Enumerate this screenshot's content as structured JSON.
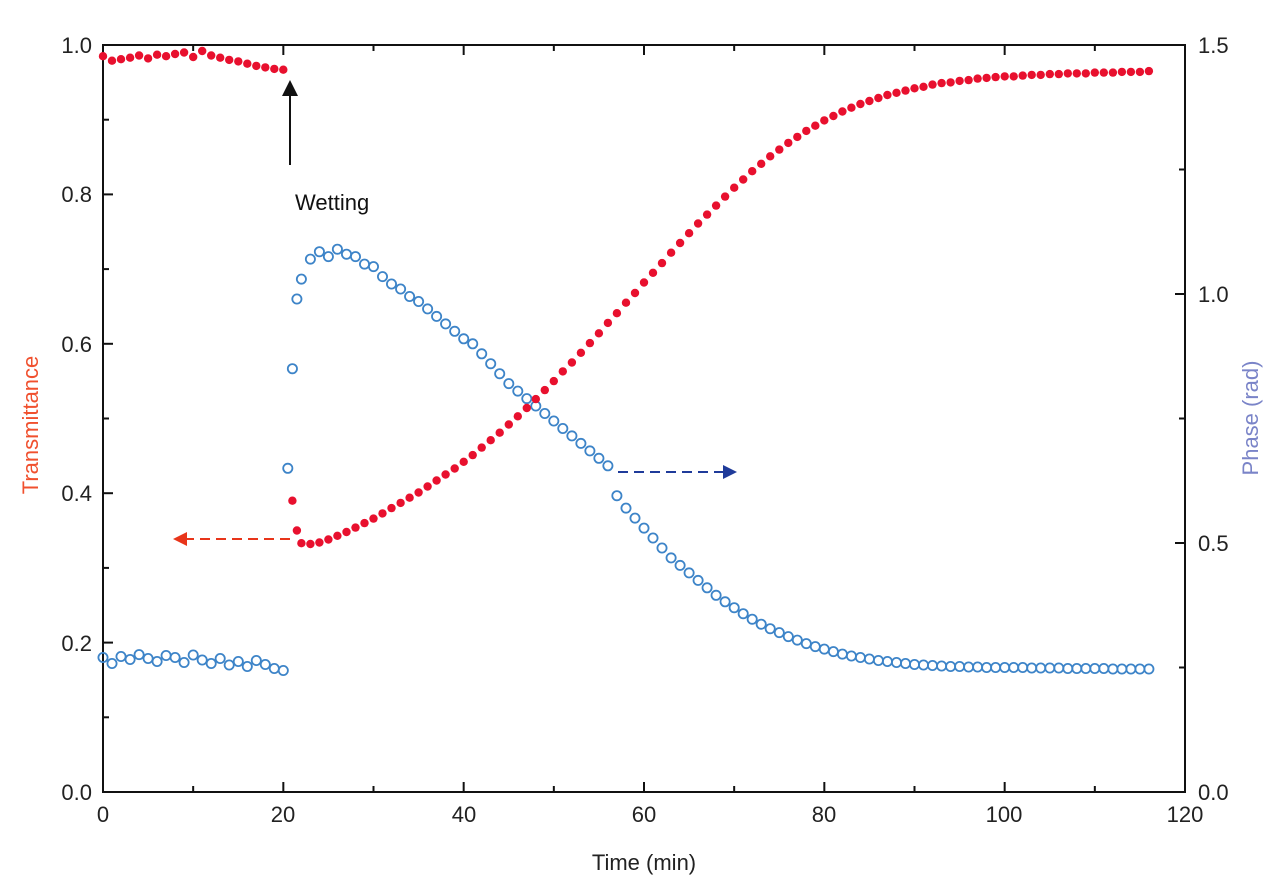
{
  "chart_data": {
    "type": "scatter",
    "title": "",
    "xlabel": "Time (min)",
    "ylabel_left": "Transmittance",
    "ylabel_right": "Phase (rad)",
    "xlim": [
      0,
      120
    ],
    "ylim_left": [
      0,
      1.0
    ],
    "ylim_right": [
      0,
      1.5
    ],
    "xticks": [
      "0",
      "20",
      "40",
      "60",
      "80",
      "100",
      "120"
    ],
    "yticks_left": [
      "0.0",
      "0.2",
      "0.4",
      "0.6",
      "0.8",
      "1.0"
    ],
    "yticks_right": [
      "0.0",
      "0.5",
      "1.0",
      "1.5"
    ],
    "grid": false,
    "colors": {
      "transmittance": "#e8102e",
      "phase": "#3d84c8",
      "left_axis_title": "#f0502e",
      "right_axis_title": "#7a84c8"
    },
    "annotations": [
      {
        "text": "Wetting",
        "x": 20,
        "arrow_points_to": "wetting event"
      }
    ],
    "series": [
      {
        "name": "Transmittance",
        "axis": "left",
        "marker": "filled-circle",
        "points": [
          [
            0,
            0.985
          ],
          [
            1,
            0.979
          ],
          [
            2,
            0.981
          ],
          [
            3,
            0.983
          ],
          [
            4,
            0.986
          ],
          [
            5,
            0.982
          ],
          [
            6,
            0.987
          ],
          [
            7,
            0.985
          ],
          [
            8,
            0.988
          ],
          [
            9,
            0.99
          ],
          [
            10,
            0.984
          ],
          [
            11,
            0.992
          ],
          [
            12,
            0.986
          ],
          [
            13,
            0.983
          ],
          [
            14,
            0.98
          ],
          [
            15,
            0.978
          ],
          [
            16,
            0.975
          ],
          [
            17,
            0.972
          ],
          [
            18,
            0.97
          ],
          [
            19,
            0.968
          ],
          [
            20,
            0.967
          ],
          [
            21,
            0.39
          ],
          [
            21.5,
            0.35
          ],
          [
            22,
            0.333
          ],
          [
            23,
            0.332
          ],
          [
            24,
            0.334
          ],
          [
            25,
            0.338
          ],
          [
            26,
            0.343
          ],
          [
            27,
            0.348
          ],
          [
            28,
            0.354
          ],
          [
            29,
            0.36
          ],
          [
            30,
            0.366
          ],
          [
            31,
            0.373
          ],
          [
            32,
            0.38
          ],
          [
            33,
            0.387
          ],
          [
            34,
            0.394
          ],
          [
            35,
            0.401
          ],
          [
            36,
            0.409
          ],
          [
            37,
            0.417
          ],
          [
            38,
            0.425
          ],
          [
            39,
            0.433
          ],
          [
            40,
            0.442
          ],
          [
            41,
            0.451
          ],
          [
            42,
            0.461
          ],
          [
            43,
            0.471
          ],
          [
            44,
            0.481
          ],
          [
            45,
            0.492
          ],
          [
            46,
            0.503
          ],
          [
            47,
            0.514
          ],
          [
            48,
            0.526
          ],
          [
            49,
            0.538
          ],
          [
            50,
            0.55
          ],
          [
            51,
            0.563
          ],
          [
            52,
            0.575
          ],
          [
            53,
            0.588
          ],
          [
            54,
            0.601
          ],
          [
            55,
            0.614
          ],
          [
            56,
            0.628
          ],
          [
            57,
            0.641
          ],
          [
            58,
            0.655
          ],
          [
            59,
            0.668
          ],
          [
            60,
            0.682
          ],
          [
            61,
            0.695
          ],
          [
            62,
            0.708
          ],
          [
            63,
            0.722
          ],
          [
            64,
            0.735
          ],
          [
            65,
            0.748
          ],
          [
            66,
            0.761
          ],
          [
            67,
            0.773
          ],
          [
            68,
            0.785
          ],
          [
            69,
            0.797
          ],
          [
            70,
            0.809
          ],
          [
            71,
            0.82
          ],
          [
            72,
            0.831
          ],
          [
            73,
            0.841
          ],
          [
            74,
            0.851
          ],
          [
            75,
            0.86
          ],
          [
            76,
            0.869
          ],
          [
            77,
            0.877
          ],
          [
            78,
            0.885
          ],
          [
            79,
            0.892
          ],
          [
            80,
            0.899
          ],
          [
            81,
            0.905
          ],
          [
            82,
            0.911
          ],
          [
            83,
            0.916
          ],
          [
            84,
            0.921
          ],
          [
            85,
            0.925
          ],
          [
            86,
            0.929
          ],
          [
            87,
            0.933
          ],
          [
            88,
            0.936
          ],
          [
            89,
            0.939
          ],
          [
            90,
            0.942
          ],
          [
            91,
            0.944
          ],
          [
            92,
            0.947
          ],
          [
            93,
            0.949
          ],
          [
            94,
            0.95
          ],
          [
            95,
            0.952
          ],
          [
            96,
            0.953
          ],
          [
            97,
            0.955
          ],
          [
            98,
            0.956
          ],
          [
            99,
            0.957
          ],
          [
            100,
            0.958
          ],
          [
            101,
            0.958
          ],
          [
            102,
            0.959
          ],
          [
            103,
            0.96
          ],
          [
            104,
            0.96
          ],
          [
            105,
            0.961
          ],
          [
            106,
            0.961
          ],
          [
            107,
            0.962
          ],
          [
            108,
            0.962
          ],
          [
            109,
            0.962
          ],
          [
            110,
            0.963
          ],
          [
            111,
            0.963
          ],
          [
            112,
            0.963
          ],
          [
            113,
            0.964
          ],
          [
            114,
            0.964
          ],
          [
            115,
            0.964
          ],
          [
            116,
            0.965
          ]
        ]
      },
      {
        "name": "Phase",
        "axis": "right",
        "marker": "open-circle",
        "points": [
          [
            0,
            0.27
          ],
          [
            1,
            0.258
          ],
          [
            2,
            0.272
          ],
          [
            3,
            0.266
          ],
          [
            4,
            0.276
          ],
          [
            5,
            0.268
          ],
          [
            6,
            0.262
          ],
          [
            7,
            0.274
          ],
          [
            8,
            0.27
          ],
          [
            9,
            0.26
          ],
          [
            10,
            0.275
          ],
          [
            11,
            0.265
          ],
          [
            12,
            0.258
          ],
          [
            13,
            0.268
          ],
          [
            14,
            0.255
          ],
          [
            15,
            0.262
          ],
          [
            16,
            0.252
          ],
          [
            17,
            0.264
          ],
          [
            18,
            0.256
          ],
          [
            19,
            0.248
          ],
          [
            20,
            0.244
          ],
          [
            20.5,
            0.65
          ],
          [
            21,
            0.85
          ],
          [
            21.5,
            0.99
          ],
          [
            22,
            1.03
          ],
          [
            23,
            1.07
          ],
          [
            24,
            1.085
          ],
          [
            25,
            1.075
          ],
          [
            26,
            1.09
          ],
          [
            27,
            1.08
          ],
          [
            28,
            1.075
          ],
          [
            29,
            1.06
          ],
          [
            30,
            1.055
          ],
          [
            31,
            1.035
          ],
          [
            32,
            1.02
          ],
          [
            33,
            1.01
          ],
          [
            34,
            0.995
          ],
          [
            35,
            0.985
          ],
          [
            36,
            0.97
          ],
          [
            37,
            0.955
          ],
          [
            38,
            0.94
          ],
          [
            39,
            0.925
          ],
          [
            40,
            0.91
          ],
          [
            41,
            0.9
          ],
          [
            42,
            0.88
          ],
          [
            43,
            0.86
          ],
          [
            44,
            0.84
          ],
          [
            45,
            0.82
          ],
          [
            46,
            0.805
          ],
          [
            47,
            0.79
          ],
          [
            48,
            0.775
          ],
          [
            49,
            0.76
          ],
          [
            50,
            0.745
          ],
          [
            51,
            0.73
          ],
          [
            52,
            0.715
          ],
          [
            53,
            0.7
          ],
          [
            54,
            0.685
          ],
          [
            55,
            0.67
          ],
          [
            56,
            0.655
          ],
          [
            57,
            0.595
          ],
          [
            58,
            0.57
          ],
          [
            59,
            0.55
          ],
          [
            60,
            0.53
          ],
          [
            61,
            0.51
          ],
          [
            62,
            0.49
          ],
          [
            63,
            0.47
          ],
          [
            64,
            0.455
          ],
          [
            65,
            0.44
          ],
          [
            66,
            0.425
          ],
          [
            67,
            0.41
          ],
          [
            68,
            0.395
          ],
          [
            69,
            0.382
          ],
          [
            70,
            0.37
          ],
          [
            71,
            0.358
          ],
          [
            72,
            0.347
          ],
          [
            73,
            0.337
          ],
          [
            74,
            0.328
          ],
          [
            75,
            0.32
          ],
          [
            76,
            0.312
          ],
          [
            77,
            0.305
          ],
          [
            78,
            0.298
          ],
          [
            79,
            0.292
          ],
          [
            80,
            0.287
          ],
          [
            81,
            0.282
          ],
          [
            82,
            0.277
          ],
          [
            83,
            0.273
          ],
          [
            84,
            0.27
          ],
          [
            85,
            0.267
          ],
          [
            86,
            0.264
          ],
          [
            87,
            0.262
          ],
          [
            88,
            0.26
          ],
          [
            89,
            0.258
          ],
          [
            90,
            0.256
          ],
          [
            91,
            0.255
          ],
          [
            92,
            0.254
          ],
          [
            93,
            0.253
          ],
          [
            94,
            0.252
          ],
          [
            95,
            0.252
          ],
          [
            96,
            0.251
          ],
          [
            97,
            0.251
          ],
          [
            98,
            0.25
          ],
          [
            99,
            0.25
          ],
          [
            100,
            0.25
          ],
          [
            101,
            0.25
          ],
          [
            102,
            0.25
          ],
          [
            103,
            0.249
          ],
          [
            104,
            0.249
          ],
          [
            105,
            0.249
          ],
          [
            106,
            0.249
          ],
          [
            107,
            0.248
          ],
          [
            108,
            0.248
          ],
          [
            109,
            0.248
          ],
          [
            110,
            0.248
          ],
          [
            111,
            0.248
          ],
          [
            112,
            0.247
          ],
          [
            113,
            0.247
          ],
          [
            114,
            0.247
          ],
          [
            115,
            0.247
          ],
          [
            116,
            0.247
          ]
        ]
      }
    ]
  }
}
